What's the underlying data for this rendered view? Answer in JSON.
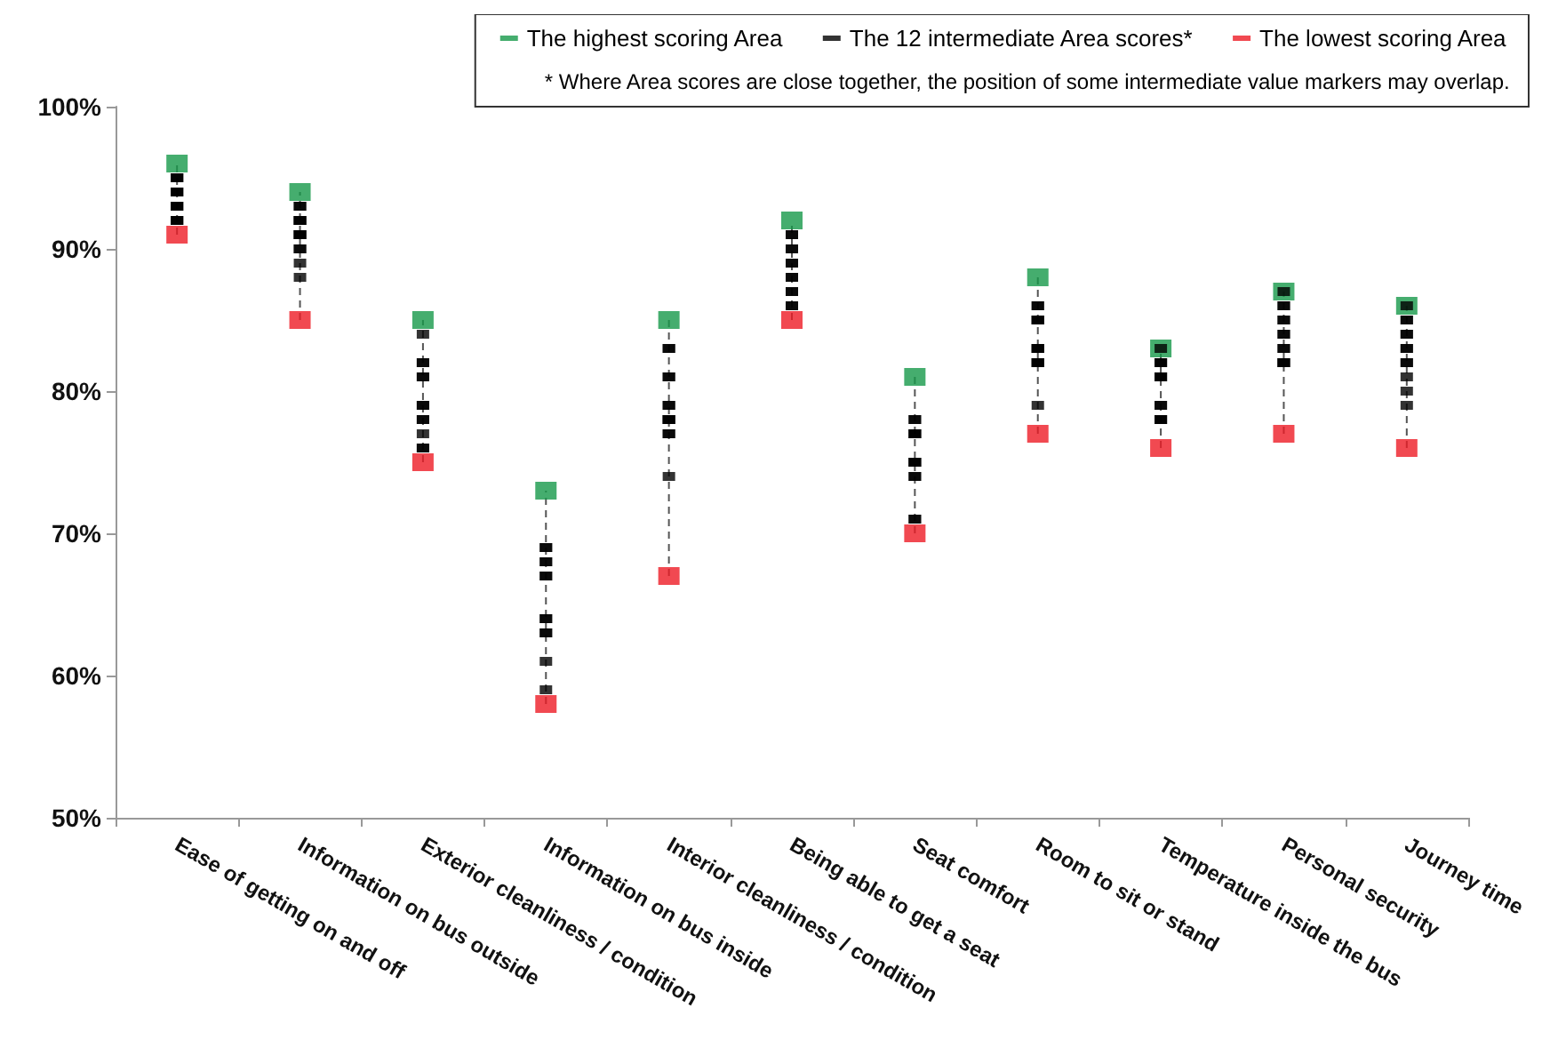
{
  "chart_data": {
    "type": "scatter",
    "categories": [
      "Ease of getting on and off",
      "Information on bus outside",
      "Exterior cleanliness / condition",
      "Information on bus inside",
      "Interior cleanliness / condition",
      "Being able to get a seat",
      "Seat comfort",
      "Room to sit or stand",
      "Temperature inside the bus",
      "Personal security",
      "Journey time"
    ],
    "series": [
      {
        "name": "The highest scoring Area",
        "color": "#17994a",
        "values": [
          96,
          94,
          85,
          73,
          85,
          92,
          81,
          88,
          83,
          87,
          86
        ]
      },
      {
        "name": "The 12 intermediate Area scores*",
        "color": "#000000",
        "x": [
          "Ease of getting on and off",
          "Ease of getting on and off",
          "Ease of getting on and off",
          "Ease of getting on and off",
          "Ease of getting on and off",
          "Ease of getting on and off",
          "Ease of getting on and off",
          "Ease of getting on and off",
          "Ease of getting on and off",
          "Ease of getting on and off",
          "Ease of getting on and off",
          "Ease of getting on and off",
          "Information on bus outside",
          "Information on bus outside",
          "Information on bus outside",
          "Information on bus outside",
          "Information on bus outside",
          "Information on bus outside",
          "Information on bus outside",
          "Information on bus outside",
          "Information on bus outside",
          "Information on bus outside",
          "Information on bus outside",
          "Information on bus outside",
          "Exterior cleanliness / condition",
          "Exterior cleanliness / condition",
          "Exterior cleanliness / condition",
          "Exterior cleanliness / condition",
          "Exterior cleanliness / condition",
          "Exterior cleanliness / condition",
          "Exterior cleanliness / condition",
          "Exterior cleanliness / condition",
          "Exterior cleanliness / condition",
          "Exterior cleanliness / condition",
          "Exterior cleanliness / condition",
          "Exterior cleanliness / condition",
          "Information on bus inside",
          "Information on bus inside",
          "Information on bus inside",
          "Information on bus inside",
          "Information on bus inside",
          "Information on bus inside",
          "Information on bus inside",
          "Information on bus inside",
          "Information on bus inside",
          "Information on bus inside",
          "Information on bus inside",
          "Information on bus inside",
          "Interior cleanliness / condition",
          "Interior cleanliness / condition",
          "Interior cleanliness / condition",
          "Interior cleanliness / condition",
          "Interior cleanliness / condition",
          "Interior cleanliness / condition",
          "Interior cleanliness / condition",
          "Interior cleanliness / condition",
          "Interior cleanliness / condition",
          "Interior cleanliness / condition",
          "Interior cleanliness / condition",
          "Interior cleanliness / condition",
          "Being able to get a seat",
          "Being able to get a seat",
          "Being able to get a seat",
          "Being able to get a seat",
          "Being able to get a seat",
          "Being able to get a seat",
          "Being able to get a seat",
          "Being able to get a seat",
          "Being able to get a seat",
          "Being able to get a seat",
          "Being able to get a seat",
          "Being able to get a seat",
          "Seat comfort",
          "Seat comfort",
          "Seat comfort",
          "Seat comfort",
          "Seat comfort",
          "Seat comfort",
          "Seat comfort",
          "Seat comfort",
          "Seat comfort",
          "Seat comfort",
          "Seat comfort",
          "Seat comfort",
          "Room to sit or stand",
          "Room to sit or stand",
          "Room to sit or stand",
          "Room to sit or stand",
          "Room to sit or stand",
          "Room to sit or stand",
          "Room to sit or stand",
          "Room to sit or stand",
          "Room to sit or stand",
          "Room to sit or stand",
          "Room to sit or stand",
          "Room to sit or stand",
          "Temperature inside the bus",
          "Temperature inside the bus",
          "Temperature inside the bus",
          "Temperature inside the bus",
          "Temperature inside the bus",
          "Temperature inside the bus",
          "Temperature inside the bus",
          "Temperature inside the bus",
          "Temperature inside the bus",
          "Temperature inside the bus",
          "Temperature inside the bus",
          "Temperature inside the bus",
          "Personal security",
          "Personal security",
          "Personal security",
          "Personal security",
          "Personal security",
          "Personal security",
          "Personal security",
          "Personal security",
          "Personal security",
          "Personal security",
          "Personal security",
          "Personal security",
          "Journey time",
          "Journey time",
          "Journey time",
          "Journey time",
          "Journey time",
          "Journey time",
          "Journey time",
          "Journey time",
          "Journey time",
          "Journey time",
          "Journey time",
          "Journey time"
        ],
        "values": [
          95,
          95,
          95,
          94,
          94,
          94,
          93,
          93,
          93,
          92,
          92,
          92,
          93,
          93,
          92,
          92,
          92,
          91,
          91,
          91,
          90,
          90,
          89,
          88,
          84,
          82,
          82,
          81,
          81,
          79,
          79,
          78,
          78,
          77,
          76,
          76,
          69,
          69,
          68,
          68,
          67,
          67,
          64,
          64,
          63,
          63,
          61,
          59,
          83,
          83,
          81,
          81,
          79,
          79,
          78,
          78,
          78,
          77,
          77,
          74,
          91,
          91,
          90,
          90,
          89,
          89,
          88,
          88,
          87,
          87,
          86,
          86,
          78,
          78,
          77,
          77,
          77,
          75,
          75,
          75,
          74,
          74,
          71,
          71,
          86,
          86,
          85,
          85,
          85,
          83,
          83,
          83,
          82,
          82,
          82,
          79,
          83,
          82,
          82,
          82,
          81,
          81,
          81,
          79,
          79,
          78,
          78,
          78,
          87,
          86,
          86,
          85,
          85,
          84,
          84,
          83,
          83,
          82,
          82,
          82,
          86,
          85,
          85,
          84,
          84,
          83,
          83,
          82,
          82,
          81,
          80,
          79
        ]
      },
      {
        "name": "The lowest scoring Area",
        "color": "#ee1c25",
        "values": [
          91,
          85,
          75,
          58,
          67,
          85,
          70,
          77,
          76,
          77,
          76
        ]
      }
    ],
    "ylim": [
      50,
      100
    ],
    "yticks": [
      {
        "value": 50,
        "label": "50%"
      },
      {
        "value": 60,
        "label": "60%"
      },
      {
        "value": 70,
        "label": "70%"
      },
      {
        "value": 80,
        "label": "80%"
      },
      {
        "value": 90,
        "label": "90%"
      },
      {
        "value": 100,
        "label": "100%"
      }
    ],
    "line_style": "dashed",
    "marker": "square",
    "grid": false,
    "legend": "top right",
    "annotations": [
      "* Where Area scores are close together, the position of some intermediate value markers may overlap."
    ]
  }
}
